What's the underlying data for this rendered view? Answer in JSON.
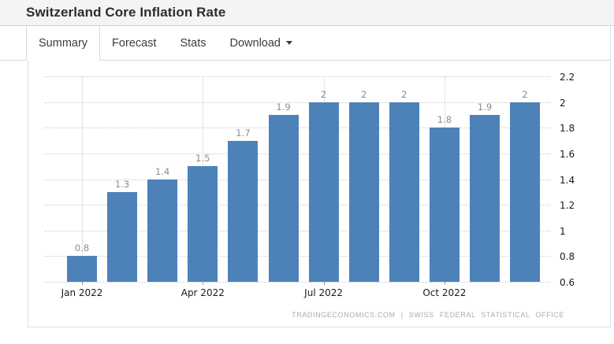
{
  "header": {
    "title": "Switzerland Core Inflation Rate"
  },
  "tabs": [
    {
      "label": "Summary",
      "active": true
    },
    {
      "label": "Forecast",
      "active": false
    },
    {
      "label": "Stats",
      "active": false
    },
    {
      "label": "Download",
      "active": false,
      "dropdown": true
    }
  ],
  "footer": {
    "attribution": "TRADINGECONOMICS.COM | SWISS FEDERAL STATISTICAL OFFICE"
  },
  "colors": {
    "bar": "#4d82b8",
    "grid": "#cccccc",
    "value_label": "#8d8d8d",
    "axis_label": "#1a1a1a",
    "header_bg": "#f4f4f4",
    "border": "#d8d8d8"
  },
  "chart_data": {
    "type": "bar",
    "title": "Switzerland Core Inflation Rate",
    "categories": [
      "Jan 2022",
      "Feb 2022",
      "Mar 2022",
      "Apr 2022",
      "May 2022",
      "Jun 2022",
      "Jul 2022",
      "Aug 2022",
      "Sep 2022",
      "Oct 2022",
      "Nov 2022",
      "Dec 2022"
    ],
    "values": [
      0.8,
      1.3,
      1.4,
      1.5,
      1.7,
      1.9,
      2,
      2,
      2,
      1.8,
      1.9,
      2
    ],
    "bar_labels": [
      "0.8",
      "1.3",
      "1.4",
      "1.5",
      "1.7",
      "1.9",
      "2",
      "2",
      "2",
      "1.8",
      "1.9",
      "2"
    ],
    "x_axis_ticks": [
      {
        "index": 0,
        "label": "Jan 2022"
      },
      {
        "index": 3,
        "label": "Apr 2022"
      },
      {
        "index": 6,
        "label": "Jul 2022"
      },
      {
        "index": 9,
        "label": "Oct 2022"
      }
    ],
    "yticks": [
      0.6,
      0.8,
      1,
      1.2,
      1.4,
      1.6,
      1.8,
      2,
      2.2
    ],
    "ylim": [
      0.6,
      2.2
    ],
    "xlabel": "",
    "ylabel": "",
    "y_axis_side": "right",
    "grid": "dotted",
    "legend_position": "none",
    "source_note": "TRADINGECONOMICS.COM | SWISS FEDERAL STATISTICAL OFFICE"
  }
}
